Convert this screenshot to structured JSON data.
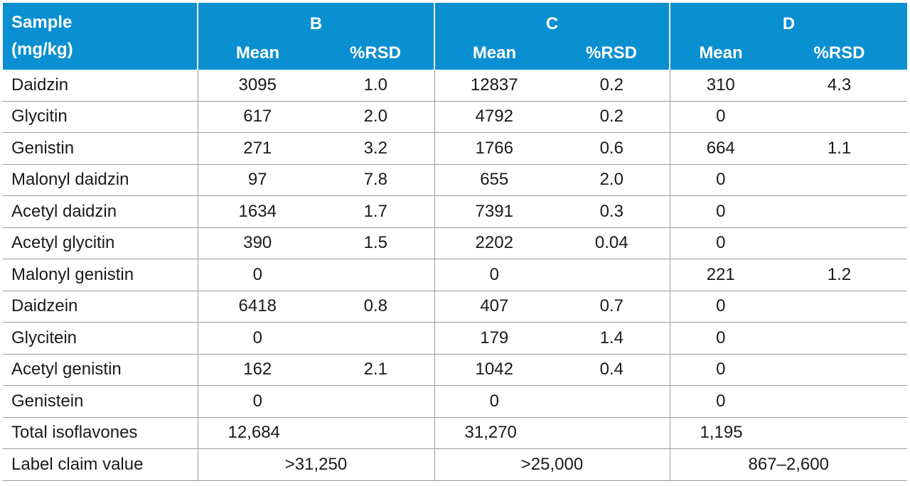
{
  "header": {
    "sample_line1": "Sample",
    "sample_line2": "(mg/kg)",
    "groups": [
      "B",
      "C",
      "D"
    ],
    "mean_label": "Mean",
    "rsd_label": "%RSD"
  },
  "rows": [
    {
      "name": "Daidzin",
      "b_mean": "3095",
      "b_rsd": "1.0",
      "c_mean": "12837",
      "c_rsd": "0.2",
      "d_mean": "310",
      "d_rsd": "4.3"
    },
    {
      "name": "Glycitin",
      "b_mean": "617",
      "b_rsd": "2.0",
      "c_mean": "4792",
      "c_rsd": "0.2",
      "d_mean": "0",
      "d_rsd": ""
    },
    {
      "name": "Genistin",
      "b_mean": "271",
      "b_rsd": "3.2",
      "c_mean": "1766",
      "c_rsd": "0.6",
      "d_mean": "664",
      "d_rsd": "1.1"
    },
    {
      "name": "Malonyl daidzin",
      "b_mean": "97",
      "b_rsd": "7.8",
      "c_mean": "655",
      "c_rsd": "2.0",
      "d_mean": "0",
      "d_rsd": ""
    },
    {
      "name": "Acetyl daidzin",
      "b_mean": "1634",
      "b_rsd": "1.7",
      "c_mean": "7391",
      "c_rsd": "0.3",
      "d_mean": "0",
      "d_rsd": ""
    },
    {
      "name": "Acetyl glycitin",
      "b_mean": "390",
      "b_rsd": "1.5",
      "c_mean": "2202",
      "c_rsd": "0.04",
      "d_mean": "0",
      "d_rsd": ""
    },
    {
      "name": "Malonyl genistin",
      "b_mean": "0",
      "b_rsd": "",
      "c_mean": "0",
      "c_rsd": "",
      "d_mean": "221",
      "d_rsd": "1.2"
    },
    {
      "name": "Daidzein",
      "b_mean": "6418",
      "b_rsd": "0.8",
      "c_mean": "407",
      "c_rsd": "0.7",
      "d_mean": "0",
      "d_rsd": ""
    },
    {
      "name": "Glycitein",
      "b_mean": "0",
      "b_rsd": "",
      "c_mean": "179",
      "c_rsd": "1.4",
      "d_mean": "0",
      "d_rsd": ""
    },
    {
      "name": "Acetyl genistin",
      "b_mean": "162",
      "b_rsd": "2.1",
      "c_mean": "1042",
      "c_rsd": "0.4",
      "d_mean": "0",
      "d_rsd": ""
    },
    {
      "name": "Genistein",
      "b_mean": "0",
      "b_rsd": "",
      "c_mean": "0",
      "c_rsd": "",
      "d_mean": "0",
      "d_rsd": ""
    }
  ],
  "total": {
    "label": "Total isoflavones",
    "b": "12,684",
    "c": "31,270",
    "d": "1,195"
  },
  "claim": {
    "label": "Label claim value",
    "b": ">31,250",
    "c": ">25,000",
    "d": "867–2,600"
  },
  "colors": {
    "header_bg": "#0a8fd1",
    "header_text": "#ffffff",
    "grid": "#9a9a9a"
  }
}
